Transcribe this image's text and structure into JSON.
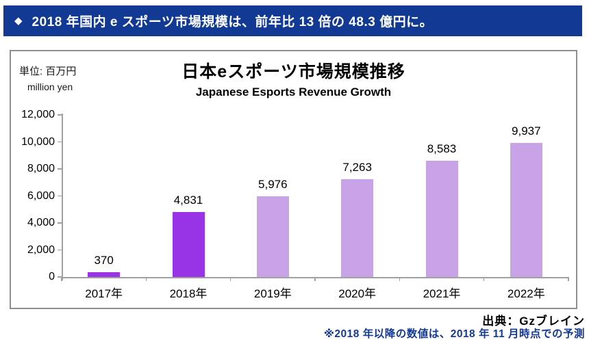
{
  "header": {
    "icon": "◆",
    "text": "2018 年国内 e スポーツ市場規模は、前年比 13 倍の 48.3 億円に。"
  },
  "chart": {
    "unit_label": "単位: 百万円",
    "unit_label_en": "million yen",
    "title": "日本eスポーツ市場規模推移",
    "subtitle": "Japanese Esports Revenue Growth"
  },
  "chart_data": {
    "type": "bar",
    "title": "日本eスポーツ市場規模推移",
    "subtitle": "Japanese Esports Revenue Growth",
    "ylabel": "単位: 百万円 (million yen)",
    "categories": [
      "2017年",
      "2018年",
      "2019年",
      "2020年",
      "2021年",
      "2022年"
    ],
    "values": [
      370,
      4831,
      5976,
      7263,
      8583,
      9937
    ],
    "value_labels": [
      "370",
      "4,831",
      "5,976",
      "7,263",
      "8,583",
      "9,937"
    ],
    "bar_colors": [
      "#9933e6",
      "#9933e6",
      "#c9a3e8",
      "#c9a3e8",
      "#c9a3e8",
      "#c9a3e8"
    ],
    "ylim": [
      0,
      12000
    ],
    "ytick_step": 2000,
    "ytick_labels": [
      "0",
      "2,000",
      "4,000",
      "6,000",
      "8,000",
      "10,000",
      "12,000"
    ],
    "grid": false,
    "legend": "none"
  },
  "footer": {
    "source": "出典：Gzブレイン",
    "note": "※2018 年以降の数値は、2018 年 11 月時点での予測"
  },
  "colors": {
    "header_bg": "#123993",
    "highlight_bar": "#9933e6",
    "forecast_bar": "#c9a3e8",
    "note_text": "#123993",
    "axis": "#a0a0a0"
  }
}
